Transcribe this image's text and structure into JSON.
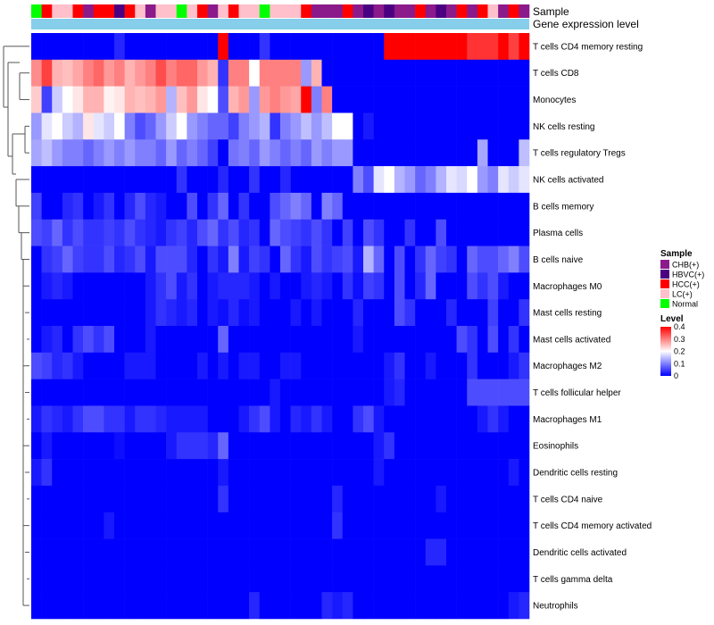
{
  "chart_data": {
    "type": "heatmap",
    "title": "",
    "n_samples": 48,
    "annotations": [
      {
        "label": "Sample",
        "type": "categorical"
      },
      {
        "label": "Gene expression level",
        "type": "bar",
        "color": "#87CEEB"
      }
    ],
    "sample_groups": [
      "Normal",
      "HCC(+)",
      "LC(+)",
      "LC(+)",
      "HCC(+)",
      "CHB(+)",
      "HCC(+)",
      "HCC(+)",
      "HBVC(+)",
      "HCC(+)",
      "LC(+)",
      "CHB(+)",
      "LC(+)",
      "LC(+)",
      "Normal",
      "LC(+)",
      "HCC(+)",
      "CHB(+)",
      "LC(+)",
      "HCC(+)",
      "LC(+)",
      "LC(+)",
      "Normal",
      "LC(+)",
      "LC(+)",
      "LC(+)",
      "HCC(+)",
      "CHB(+)",
      "CHB(+)",
      "CHB(+)",
      "HCC(+)",
      "CHB(+)",
      "HBVC(+)",
      "CHB(+)",
      "HBVC(+)",
      "CHB(+)",
      "CHB(+)",
      "HCC(+)",
      "CHB(+)",
      "HBVC(+)",
      "CHB(+)",
      "HCC(+)",
      "CHB(+)",
      "HCC(+)",
      "LC(+)",
      "CHB(+)",
      "HCC(+)",
      "CHB(+)"
    ],
    "rows": [
      {
        "label": "T cells CD4 memory resting",
        "values": [
          0,
          0,
          0,
          0,
          0,
          0,
          0,
          0,
          0.03,
          0,
          0,
          0,
          0,
          0,
          0,
          0,
          0,
          0,
          0.4,
          0,
          0,
          0,
          0.04,
          0,
          0,
          0,
          0,
          0,
          0,
          0,
          0,
          0,
          0,
          0,
          0.4,
          0.4,
          0.4,
          0.4,
          0.4,
          0.4,
          0.4,
          0.4,
          0.36,
          0.36,
          0.36,
          0.4,
          0.35,
          0.4
        ]
      },
      {
        "label": "T cells CD8",
        "values": [
          0.29,
          0.35,
          0.26,
          0.25,
          0.27,
          0.3,
          0.32,
          0.28,
          0.3,
          0.26,
          0.28,
          0.3,
          0.34,
          0.3,
          0.32,
          0.32,
          0.28,
          0.26,
          0.04,
          0.3,
          0.3,
          0.2,
          0.3,
          0.3,
          0.3,
          0.3,
          0.12,
          0.26,
          0,
          0,
          0,
          0,
          0,
          0,
          0,
          0,
          0,
          0,
          0,
          0,
          0,
          0,
          0,
          0,
          0,
          0,
          0,
          0
        ]
      },
      {
        "label": "Monocytes",
        "values": [
          0.24,
          0.05,
          0.16,
          0.2,
          0.22,
          0.26,
          0.26,
          0.21,
          0.22,
          0.26,
          0.25,
          0.26,
          0.28,
          0.14,
          0.25,
          0.28,
          0.22,
          0.2,
          0.06,
          0.26,
          0.28,
          0.12,
          0.28,
          0.3,
          0.28,
          0.27,
          0.4,
          0.1,
          0.3,
          0,
          0,
          0,
          0,
          0,
          0,
          0,
          0,
          0,
          0,
          0,
          0,
          0,
          0,
          0,
          0,
          0,
          0,
          0
        ]
      },
      {
        "label": "NK cells resting",
        "values": [
          0.12,
          0.18,
          0.2,
          0.16,
          0.14,
          0.22,
          0.18,
          0.16,
          0.2,
          0.1,
          0.06,
          0.08,
          0.12,
          0.16,
          0.2,
          0.12,
          0.1,
          0.08,
          0.08,
          0.05,
          0.1,
          0.12,
          0.14,
          0.04,
          0.1,
          0.12,
          0.15,
          0.12,
          0.15,
          0.2,
          0.2,
          0,
          0.02,
          0,
          0,
          0,
          0,
          0,
          0,
          0,
          0,
          0,
          0,
          0,
          0,
          0,
          0,
          0
        ]
      },
      {
        "label": "T cells regulatory  Tregs",
        "values": [
          0.13,
          0.15,
          0.12,
          0.1,
          0.1,
          0.08,
          0.1,
          0.12,
          0.1,
          0.12,
          0.1,
          0.1,
          0.08,
          0.12,
          0.08,
          0.1,
          0.08,
          0.05,
          0,
          0.09,
          0.1,
          0.08,
          0.12,
          0.1,
          0.08,
          0.1,
          0.08,
          0.12,
          0.1,
          0.12,
          0.12,
          0,
          0,
          0,
          0,
          0,
          0,
          0,
          0,
          0,
          0,
          0,
          0,
          0.13,
          0,
          0,
          0,
          0.15
        ]
      },
      {
        "label": "NK cells activated",
        "values": [
          0,
          0,
          0,
          0,
          0,
          0,
          0,
          0,
          0,
          0,
          0,
          0,
          0,
          0,
          0.04,
          0,
          0,
          0,
          0.03,
          0,
          0,
          0.04,
          0,
          0,
          0.03,
          0,
          0,
          0,
          0,
          0,
          0,
          0.1,
          0.06,
          0.18,
          0.2,
          0.14,
          0.12,
          0.08,
          0.1,
          0.14,
          0.18,
          0.17,
          0.2,
          0.12,
          0.1,
          0.18,
          0.16,
          0.18
        ]
      },
      {
        "label": "B cells memory",
        "values": [
          0.05,
          0,
          0,
          0.03,
          0.04,
          0,
          0.02,
          0.04,
          0,
          0.03,
          0.06,
          0.03,
          0.02,
          0,
          0,
          0.06,
          0,
          0.04,
          0.08,
          0,
          0.04,
          0,
          0,
          0.06,
          0.08,
          0.1,
          0.08,
          0,
          0.1,
          0.08,
          0,
          0,
          0,
          0,
          0,
          0,
          0,
          0,
          0,
          0,
          0,
          0,
          0,
          0,
          0,
          0,
          0,
          0
        ]
      },
      {
        "label": "Plasma cells",
        "values": [
          0.06,
          0.05,
          0.08,
          0.04,
          0.06,
          0.04,
          0.04,
          0.05,
          0.04,
          0.06,
          0.04,
          0.03,
          0.02,
          0.04,
          0.05,
          0.03,
          0.06,
          0.08,
          0.04,
          0.06,
          0.03,
          0.04,
          0,
          0.08,
          0.06,
          0.05,
          0.04,
          0.06,
          0.04,
          0,
          0.05,
          0,
          0.06,
          0.04,
          0,
          0,
          0.04,
          0,
          0,
          0.06,
          0,
          0,
          0,
          0,
          0,
          0,
          0,
          0
        ]
      },
      {
        "label": "B cells naive",
        "values": [
          0,
          0.04,
          0.05,
          0.08,
          0.05,
          0.04,
          0.04,
          0.06,
          0.03,
          0.04,
          0.06,
          0.02,
          0.06,
          0.06,
          0.06,
          0.03,
          0,
          0.04,
          0.02,
          0.1,
          0.02,
          0.05,
          0.04,
          0,
          0.08,
          0.04,
          0.02,
          0.06,
          0.04,
          0.05,
          0.06,
          0.02,
          0.14,
          0.08,
          0,
          0.06,
          0,
          0.04,
          0.08,
          0.05,
          0.04,
          0,
          0.08,
          0.06,
          0.06,
          0.08,
          0.1,
          0.06
        ]
      },
      {
        "label": "Macrophages M0",
        "values": [
          0,
          0.02,
          0.03,
          0.02,
          0,
          0,
          0,
          0,
          0,
          0,
          0,
          0.02,
          0.04,
          0.06,
          0.02,
          0.04,
          0,
          0.02,
          0.03,
          0.03,
          0.03,
          0.02,
          0,
          0.02,
          0,
          0,
          0.02,
          0.03,
          0.02,
          0,
          0.04,
          0.01,
          0.05,
          0.04,
          0,
          0.06,
          0,
          0.03,
          0.08,
          0,
          0,
          0,
          0.06,
          0.04,
          0.06,
          0.02,
          0,
          0
        ]
      },
      {
        "label": "Mast cells resting",
        "values": [
          0,
          0,
          0,
          0,
          0,
          0,
          0,
          0,
          0,
          0,
          0,
          0.02,
          0.04,
          0.03,
          0.02,
          0.03,
          0,
          0.02,
          0.01,
          0.03,
          0.01,
          0.02,
          0,
          0,
          0,
          0.02,
          0,
          0.02,
          0,
          0,
          0,
          0.03,
          0,
          0,
          0,
          0.06,
          0.04,
          0,
          0,
          0,
          0.03,
          0,
          0,
          0,
          0.05,
          0,
          0,
          0.04
        ]
      },
      {
        "label": "Mast cells activated",
        "values": [
          0,
          0.02,
          0.03,
          0,
          0.04,
          0.06,
          0.04,
          0.06,
          0,
          0,
          0,
          0.02,
          0,
          0,
          0,
          0,
          0,
          0,
          0.08,
          0,
          0,
          0,
          0,
          0,
          0,
          0,
          0,
          0,
          0,
          0,
          0,
          0.02,
          0,
          0,
          0,
          0,
          0,
          0,
          0,
          0,
          0,
          0.06,
          0.04,
          0,
          0.06,
          0,
          0.04,
          0
        ]
      },
      {
        "label": "Macrophages M2",
        "values": [
          0.06,
          0.05,
          0.03,
          0.04,
          0.02,
          0,
          0,
          0,
          0,
          0.02,
          0.02,
          0.02,
          0,
          0,
          0,
          0,
          0.02,
          0,
          0.02,
          0,
          0.02,
          0.02,
          0,
          0,
          0.02,
          0.02,
          0,
          0,
          0,
          0,
          0,
          0,
          0,
          0,
          0.02,
          0.04,
          0,
          0,
          0.02,
          0,
          0,
          0,
          0.04,
          0,
          0,
          0,
          0.02,
          0.04
        ]
      },
      {
        "label": "T cells follicular helper",
        "values": [
          0,
          0,
          0,
          0,
          0,
          0,
          0,
          0,
          0,
          0,
          0,
          0,
          0,
          0,
          0,
          0,
          0,
          0,
          0,
          0,
          0,
          0,
          0,
          0.02,
          0,
          0,
          0,
          0,
          0,
          0,
          0,
          0,
          0,
          0,
          0.02,
          0.03,
          0,
          0,
          0,
          0,
          0,
          0,
          0.06,
          0.06,
          0.06,
          0.06,
          0.06,
          0.06
        ]
      },
      {
        "label": "Macrophages M1",
        "values": [
          0.02,
          0.04,
          0.03,
          0.02,
          0.04,
          0.06,
          0.06,
          0.04,
          0.04,
          0.02,
          0.04,
          0.04,
          0.03,
          0.02,
          0.02,
          0.02,
          0.02,
          0,
          0,
          0,
          0.02,
          0.04,
          0.06,
          0.02,
          0,
          0.03,
          0.02,
          0.04,
          0.02,
          0,
          0,
          0.04,
          0.06,
          0.02,
          0,
          0,
          0,
          0,
          0,
          0,
          0,
          0,
          0,
          0.02,
          0.04,
          0.02,
          0,
          0
        ]
      },
      {
        "label": "Eosinophils",
        "values": [
          0,
          0.02,
          0,
          0,
          0,
          0,
          0,
          0,
          0.01,
          0,
          0,
          0,
          0,
          0.02,
          0.04,
          0.04,
          0.04,
          0.03,
          0.08,
          0,
          0,
          0,
          0,
          0,
          0,
          0,
          0,
          0,
          0,
          0,
          0,
          0,
          0,
          0.02,
          0.04,
          0,
          0,
          0,
          0,
          0,
          0,
          0,
          0,
          0,
          0,
          0,
          0,
          0
        ]
      },
      {
        "label": "Dendritic cells resting",
        "values": [
          0.02,
          0.04,
          0,
          0,
          0,
          0,
          0,
          0,
          0,
          0,
          0,
          0,
          0,
          0,
          0,
          0,
          0,
          0,
          0.02,
          0,
          0,
          0,
          0,
          0,
          0,
          0,
          0,
          0,
          0,
          0,
          0,
          0,
          0,
          0.02,
          0,
          0,
          0,
          0,
          0,
          0,
          0,
          0,
          0,
          0,
          0,
          0,
          0.02,
          0
        ]
      },
      {
        "label": "T cells CD4 naive",
        "values": [
          0,
          0,
          0,
          0,
          0,
          0,
          0,
          0,
          0,
          0,
          0,
          0,
          0,
          0,
          0,
          0,
          0,
          0,
          0.04,
          0,
          0,
          0,
          0,
          0,
          0,
          0,
          0,
          0,
          0,
          0.03,
          0,
          0,
          0,
          0,
          0,
          0,
          0,
          0,
          0,
          0.02,
          0,
          0,
          0,
          0,
          0,
          0,
          0,
          0
        ]
      },
      {
        "label": "T cells CD4 memory activated",
        "values": [
          0,
          0,
          0,
          0,
          0,
          0,
          0,
          0.02,
          0,
          0,
          0,
          0,
          0,
          0,
          0,
          0,
          0,
          0,
          0,
          0,
          0,
          0,
          0,
          0,
          0,
          0,
          0,
          0,
          0,
          0.04,
          0,
          0,
          0,
          0,
          0,
          0,
          0,
          0,
          0,
          0,
          0,
          0,
          0,
          0,
          0,
          0,
          0,
          0
        ]
      },
      {
        "label": "Dendritic cells activated",
        "values": [
          0,
          0,
          0,
          0,
          0,
          0,
          0,
          0,
          0,
          0,
          0,
          0,
          0,
          0,
          0,
          0,
          0,
          0,
          0,
          0,
          0,
          0,
          0,
          0,
          0,
          0,
          0,
          0,
          0,
          0,
          0,
          0,
          0,
          0,
          0,
          0,
          0,
          0,
          0.03,
          0.03,
          0,
          0,
          0,
          0,
          0,
          0,
          0,
          0
        ]
      },
      {
        "label": "T cells gamma delta",
        "values": [
          0,
          0,
          0,
          0,
          0,
          0,
          0,
          0,
          0,
          0,
          0,
          0,
          0,
          0,
          0,
          0,
          0,
          0,
          0,
          0,
          0,
          0,
          0,
          0,
          0,
          0,
          0,
          0,
          0,
          0,
          0,
          0,
          0,
          0,
          0,
          0,
          0,
          0,
          0,
          0,
          0,
          0,
          0,
          0,
          0,
          0,
          0,
          0
        ]
      },
      {
        "label": "Neutrophils",
        "values": [
          0,
          0,
          0,
          0,
          0,
          0,
          0,
          0,
          0,
          0,
          0,
          0,
          0,
          0,
          0,
          0,
          0,
          0,
          0,
          0,
          0,
          0.03,
          0,
          0,
          0,
          0,
          0,
          0,
          0.03,
          0.02,
          0.03,
          0,
          0,
          0,
          0,
          0,
          0,
          0,
          0,
          0,
          0,
          0,
          0,
          0,
          0,
          0,
          0.02,
          0.03
        ]
      }
    ],
    "legend_sample": {
      "title": "Sample",
      "entries": [
        {
          "label": "CHB(+)",
          "color": "#8B1A8B"
        },
        {
          "label": "HBVC(+)",
          "color": "#4B0082"
        },
        {
          "label": "HCC(+)",
          "color": "#FF0000"
        },
        {
          "label": "LC(+)",
          "color": "#FFC0CB"
        },
        {
          "label": "Normal",
          "color": "#00FF00"
        }
      ]
    },
    "legend_level": {
      "title": "Level",
      "ticks": [
        0.4,
        0.3,
        0.2,
        0.1,
        0
      ],
      "tick_labels": [
        "0.4",
        "0.3",
        "0.2",
        "0.1",
        "0"
      ],
      "range": [
        0,
        0.4
      ],
      "colors": {
        "low": "#0000FF",
        "mid": "#FFFFFF",
        "high": "#FF0000"
      }
    }
  }
}
